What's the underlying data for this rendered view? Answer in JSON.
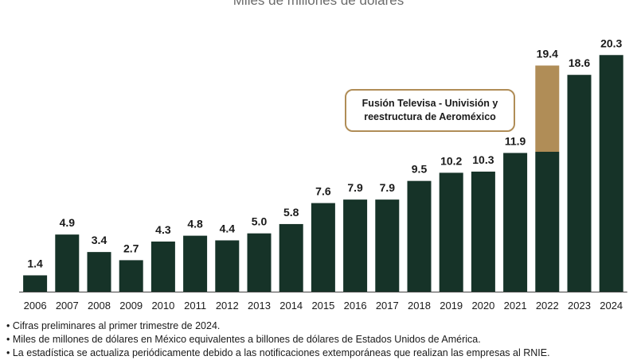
{
  "chart_data": {
    "type": "bar",
    "subtitle": "Miles de millones de dólares",
    "categories": [
      "2006",
      "2007",
      "2008",
      "2009",
      "2010",
      "2011",
      "2012",
      "2013",
      "2014",
      "2015",
      "2016",
      "2017",
      "2018",
      "2019",
      "2020",
      "2021",
      "2022",
      "2023",
      "2024"
    ],
    "values": [
      1.4,
      4.9,
      3.4,
      2.7,
      4.3,
      4.8,
      4.4,
      5.0,
      5.8,
      7.6,
      7.9,
      7.9,
      9.5,
      10.2,
      10.3,
      11.9,
      19.4,
      18.6,
      20.3
    ],
    "value_labels": [
      "1.4",
      "4.9",
      "3.4",
      "2.7",
      "4.3",
      "4.8",
      "4.4",
      "5.0",
      "5.8",
      "7.6",
      "7.9",
      "7.9",
      "9.5",
      "10.2",
      "10.3",
      "11.9",
      "19.4",
      "18.6",
      "20.3"
    ],
    "highlight": {
      "category": "2022",
      "base_value": 12.0,
      "total_value": 19.4
    },
    "annotation": "Fusión Televisa - Univisión y reestructura de Aeroméxico",
    "ylim": [
      0,
      21
    ],
    "grid": false,
    "colors": {
      "bar": "#163328",
      "highlight": "#b08d57",
      "axis": "#444444"
    }
  },
  "notes": [
    "Cifras preliminares al primer trimestre de 2024.",
    "Miles de millones de dólares en México equivalentes a billones de dólares de Estados Unidos de América.",
    "La estadística se actualiza periódicamente debido a las notificaciones extemporáneas que realizan las empresas al RNIE."
  ]
}
